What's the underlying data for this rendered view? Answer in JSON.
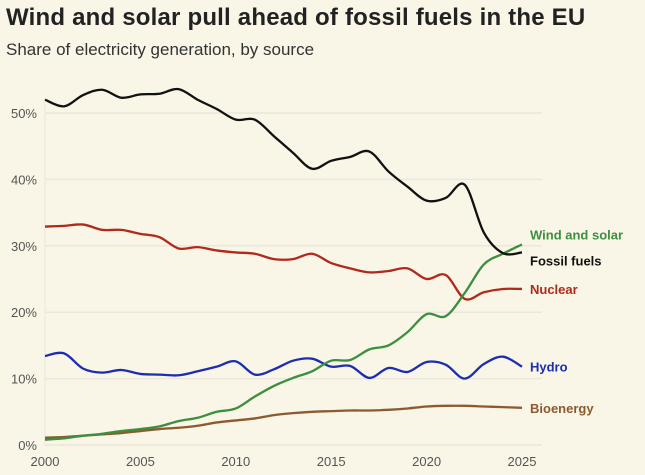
{
  "chart_data": {
    "type": "line",
    "title": "Wind and solar pull ahead of fossil fuels in the EU",
    "subtitle": "Share of electricity generation, by source",
    "xlabel": "",
    "ylabel": "",
    "xlim": [
      2000,
      2025
    ],
    "ylim": [
      0,
      55
    ],
    "x_ticks": [
      2000,
      2005,
      2010,
      2015,
      2020,
      2025
    ],
    "x_tick_labels": [
      "2000",
      "2005",
      "2010",
      "2015",
      "2020",
      "2025"
    ],
    "y_ticks": [
      0,
      10,
      20,
      30,
      40,
      50
    ],
    "y_tick_labels": [
      "0%",
      "10%",
      "20%",
      "30%",
      "40%",
      "50%"
    ],
    "grid": true,
    "legend": "direct labels at right end of lines",
    "x": [
      2000,
      2001,
      2002,
      2003,
      2004,
      2005,
      2006,
      2007,
      2008,
      2009,
      2010,
      2011,
      2012,
      2013,
      2014,
      2015,
      2016,
      2017,
      2018,
      2019,
      2020,
      2021,
      2022,
      2023,
      2024,
      2025
    ],
    "series": [
      {
        "name": "Wind and solar",
        "color": "#3c8f3e",
        "values": [
          0.8,
          1.0,
          1.4,
          1.7,
          2.1,
          2.4,
          2.8,
          3.6,
          4.1,
          5.0,
          5.5,
          7.3,
          8.9,
          10.1,
          11.1,
          12.7,
          12.8,
          14.4,
          15.0,
          17.0,
          19.7,
          19.4,
          22.9,
          27.2,
          28.8,
          30.2
        ]
      },
      {
        "name": "Fossil fuels",
        "color": "#111111",
        "values": [
          52.0,
          51.0,
          52.7,
          53.5,
          52.3,
          52.8,
          52.9,
          53.6,
          52.0,
          50.6,
          49.0,
          49.0,
          46.5,
          44.0,
          41.6,
          42.8,
          43.4,
          44.2,
          41.2,
          38.9,
          36.8,
          37.2,
          39.2,
          32.0,
          28.9,
          29.0
        ]
      },
      {
        "name": "Nuclear",
        "color": "#b02a1b",
        "values": [
          32.9,
          33.0,
          33.2,
          32.4,
          32.4,
          31.8,
          31.3,
          29.6,
          29.8,
          29.3,
          29.0,
          28.8,
          28.0,
          28.0,
          28.8,
          27.4,
          26.6,
          26.0,
          26.2,
          26.6,
          25.0,
          25.6,
          22.0,
          23.0,
          23.5,
          23.5
        ]
      },
      {
        "name": "Hydro",
        "color": "#1b2db0",
        "values": [
          13.4,
          13.8,
          11.5,
          10.9,
          11.3,
          10.7,
          10.6,
          10.5,
          11.1,
          11.8,
          12.6,
          10.6,
          11.4,
          12.7,
          13.0,
          11.8,
          11.9,
          10.1,
          11.6,
          11.0,
          12.5,
          12.1,
          10.0,
          12.2,
          13.3,
          11.8
        ]
      },
      {
        "name": "Bioenergy",
        "color": "#8c5a2e",
        "values": [
          1.1,
          1.2,
          1.4,
          1.6,
          1.8,
          2.1,
          2.4,
          2.6,
          2.9,
          3.4,
          3.7,
          4.0,
          4.5,
          4.8,
          5.0,
          5.1,
          5.2,
          5.2,
          5.3,
          5.5,
          5.8,
          5.9,
          5.9,
          5.8,
          5.7,
          5.6
        ]
      }
    ]
  }
}
